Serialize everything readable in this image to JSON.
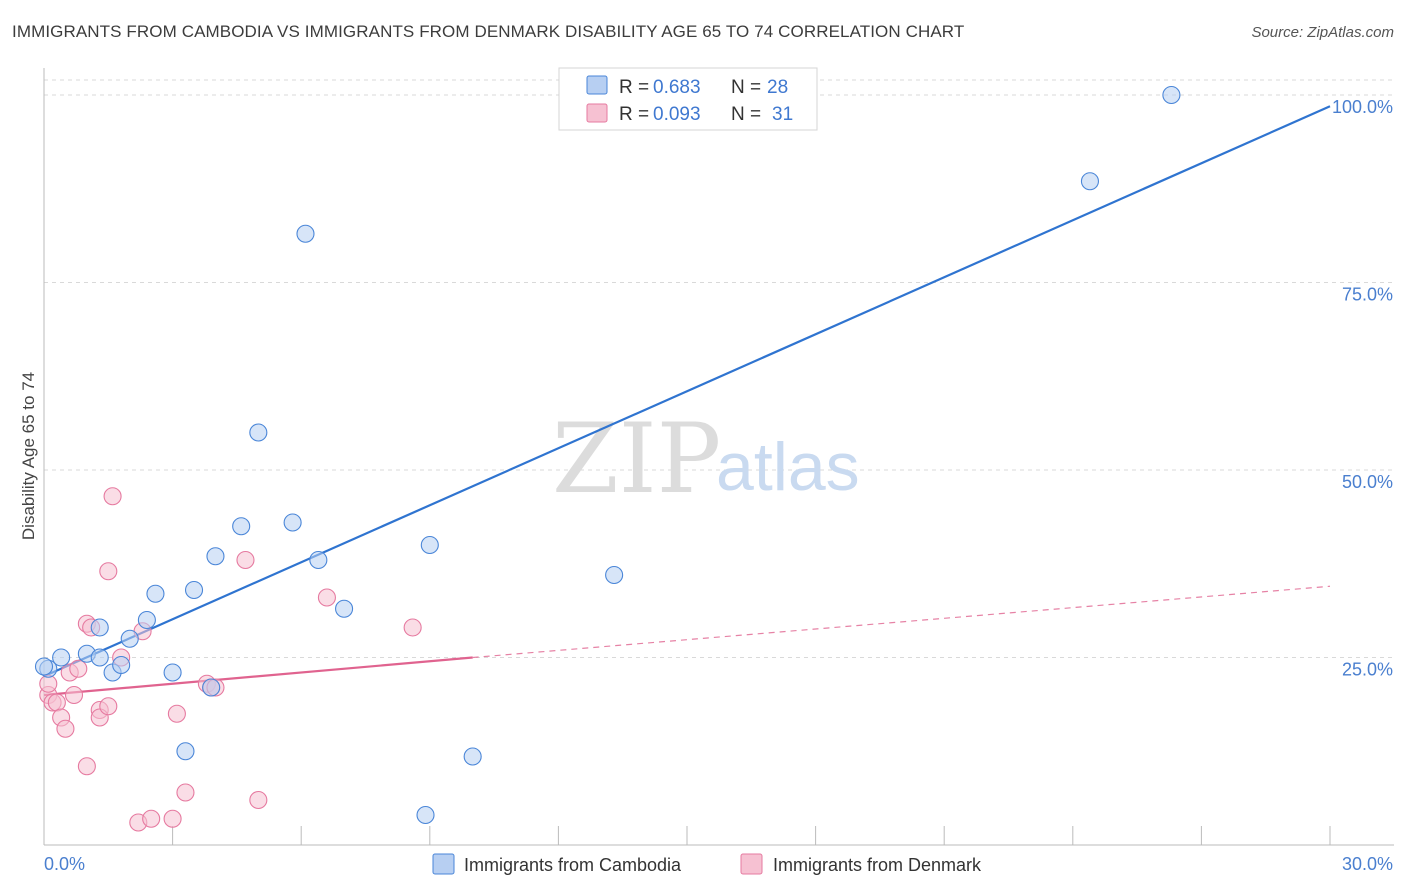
{
  "title": "IMMIGRANTS FROM CAMBODIA VS IMMIGRANTS FROM DENMARK DISABILITY AGE 65 TO 74 CORRELATION CHART",
  "source": "Source: ZipAtlas.com",
  "colors": {
    "blue": "#4a86d8",
    "blue_fill": "#b7cff2",
    "blue_line": "#2f74d0",
    "pink": "#e67aa0",
    "pink_fill": "#f6c1d2",
    "pink_line": "#e0638f",
    "tick": "#4a7fcf",
    "grid": "#d9d9d9"
  },
  "legend": {
    "rows": [
      {
        "r_label": "R =",
        "r_value": "0.683",
        "n_label": "N =",
        "n_value": "28"
      },
      {
        "r_label": "R =",
        "r_value": "0.093",
        "n_label": "N =",
        "n_value": "31"
      }
    ]
  },
  "bottom_legend": [
    "Immigrants from Cambodia",
    "Immigrants from Denmark"
  ],
  "watermark": {
    "zip": "ZIP",
    "atlas": "atlas"
  },
  "chart_data": {
    "type": "scatter",
    "title": "IMMIGRANTS FROM CAMBODIA VS IMMIGRANTS FROM DENMARK DISABILITY AGE 65 TO 74 CORRELATION CHART",
    "xlabel": "",
    "ylabel": "Disability Age 65 to 74",
    "xlim": [
      0,
      30
    ],
    "ylim": [
      0,
      102
    ],
    "x_tick_labels": [
      "0.0%",
      "30.0%"
    ],
    "y_ticks": [
      25,
      50,
      75,
      100
    ],
    "y_tick_labels": [
      "25.0%",
      "50.0%",
      "75.0%",
      "100.0%"
    ],
    "series": [
      {
        "name": "Immigrants from Cambodia",
        "r": 0.683,
        "n": 28,
        "points": [
          [
            0.1,
            23.5
          ],
          [
            0.4,
            25.0
          ],
          [
            1.0,
            25.5
          ],
          [
            1.3,
            25.0
          ],
          [
            1.3,
            29.0
          ],
          [
            1.6,
            23.0
          ],
          [
            1.8,
            24.0
          ],
          [
            2.0,
            27.5
          ],
          [
            2.4,
            30.0
          ],
          [
            2.6,
            33.5
          ],
          [
            3.0,
            23.0
          ],
          [
            3.3,
            12.5
          ],
          [
            3.5,
            34.0
          ],
          [
            3.9,
            21.0
          ],
          [
            4.0,
            38.5
          ],
          [
            4.6,
            42.5
          ],
          [
            5.0,
            55.0
          ],
          [
            5.8,
            43.0
          ],
          [
            6.1,
            81.5
          ],
          [
            6.4,
            38.0
          ],
          [
            7.0,
            31.5
          ],
          [
            8.9,
            4.0
          ],
          [
            9.0,
            40.0
          ],
          [
            10.0,
            11.8
          ],
          [
            13.3,
            36.0
          ],
          [
            24.4,
            88.5
          ],
          [
            26.3,
            100.0
          ],
          [
            0.0,
            23.8
          ]
        ],
        "trend": {
          "x": [
            0,
            30
          ],
          "y": [
            22.5,
            98.5
          ]
        }
      },
      {
        "name": "Immigrants from Denmark",
        "r": 0.093,
        "n": 31,
        "points": [
          [
            0.1,
            20.0
          ],
          [
            0.2,
            19.0
          ],
          [
            0.3,
            19.0
          ],
          [
            0.4,
            17.0
          ],
          [
            0.5,
            15.5
          ],
          [
            0.6,
            23.0
          ],
          [
            0.7,
            20.0
          ],
          [
            0.8,
            23.5
          ],
          [
            1.0,
            10.5
          ],
          [
            1.0,
            29.5
          ],
          [
            1.1,
            29.0
          ],
          [
            1.3,
            18.0
          ],
          [
            1.3,
            17.0
          ],
          [
            1.5,
            18.5
          ],
          [
            1.6,
            46.5
          ],
          [
            1.5,
            36.5
          ],
          [
            1.8,
            25.0
          ],
          [
            2.2,
            3.0
          ],
          [
            2.3,
            28.5
          ],
          [
            2.5,
            3.5
          ],
          [
            3.0,
            3.5
          ],
          [
            3.1,
            17.5
          ],
          [
            3.3,
            7.0
          ],
          [
            3.8,
            21.5
          ],
          [
            3.9,
            21.0
          ],
          [
            4.0,
            21.0
          ],
          [
            4.7,
            38.0
          ],
          [
            5.0,
            6.0
          ],
          [
            6.6,
            33.0
          ],
          [
            8.6,
            29.0
          ],
          [
            0.1,
            21.5
          ]
        ],
        "trend_solid": {
          "x": [
            0,
            10
          ],
          "y": [
            20.0,
            25.0
          ]
        },
        "trend_dashed": {
          "x": [
            10,
            30
          ],
          "y": [
            25.0,
            34.5
          ]
        }
      }
    ]
  }
}
